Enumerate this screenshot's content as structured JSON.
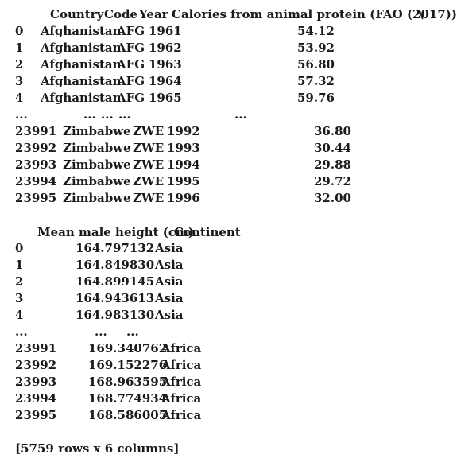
{
  "header1": {
    "country": "Country",
    "code": "Code",
    "year": "Year",
    "calories": "Calories from animal protein (FAO (2017))",
    "continuation": "\\"
  },
  "block1_rows_top": [
    {
      "index": "0",
      "country": "Afghanistan",
      "code": "AFG",
      "year": "1961",
      "value": "54.12"
    },
    {
      "index": "1",
      "country": "Afghanistan",
      "code": "AFG",
      "year": "1962",
      "value": "53.92"
    },
    {
      "index": "2",
      "country": "Afghanistan",
      "code": "AFG",
      "year": "1963",
      "value": "56.80"
    },
    {
      "index": "3",
      "country": "Afghanistan",
      "code": "AFG",
      "year": "1964",
      "value": "57.32"
    },
    {
      "index": "4",
      "country": "Afghanistan",
      "code": "AFG",
      "year": "1965",
      "value": "59.76"
    }
  ],
  "block1_ellipsis": {
    "index": "...",
    "country": "...",
    "code": "...",
    "year": "...",
    "value": "..."
  },
  "block1_rows_bottom": [
    {
      "index": "23991",
      "country": "Zimbabwe",
      "code": "ZWE",
      "year": "1992",
      "value": "36.80"
    },
    {
      "index": "23992",
      "country": "Zimbabwe",
      "code": "ZWE",
      "year": "1993",
      "value": "30.44"
    },
    {
      "index": "23993",
      "country": "Zimbabwe",
      "code": "ZWE",
      "year": "1994",
      "value": "29.88"
    },
    {
      "index": "23994",
      "country": "Zimbabwe",
      "code": "ZWE",
      "year": "1995",
      "value": "29.72"
    },
    {
      "index": "23995",
      "country": "Zimbabwe",
      "code": "ZWE",
      "year": "1996",
      "value": "32.00"
    }
  ],
  "header2": {
    "height": "Mean male height (cm)",
    "continent": "Continent"
  },
  "block2_rows_top": [
    {
      "index": "0",
      "height": "164.797132",
      "continent": "Asia"
    },
    {
      "index": "1",
      "height": "164.849830",
      "continent": "Asia"
    },
    {
      "index": "2",
      "height": "164.899145",
      "continent": "Asia"
    },
    {
      "index": "3",
      "height": "164.943613",
      "continent": "Asia"
    },
    {
      "index": "4",
      "height": "164.983130",
      "continent": "Asia"
    }
  ],
  "block2_ellipsis": {
    "index": "...",
    "height": "...",
    "continent": "..."
  },
  "block2_rows_bottom": [
    {
      "index": "23991",
      "height": "169.340762",
      "continent": "Africa"
    },
    {
      "index": "23992",
      "height": "169.152276",
      "continent": "Africa"
    },
    {
      "index": "23993",
      "height": "168.963595",
      "continent": "Africa"
    },
    {
      "index": "23994",
      "height": "168.774934",
      "continent": "Africa"
    },
    {
      "index": "23995",
      "height": "168.586005",
      "continent": "Africa"
    }
  ],
  "footer": "[5759 rows x 6 columns]"
}
